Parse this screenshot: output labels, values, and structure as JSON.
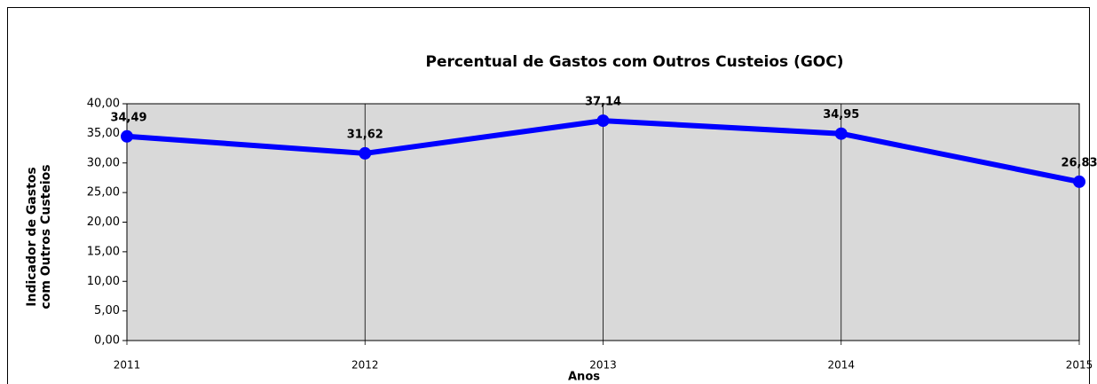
{
  "chart_data": {
    "type": "line",
    "title": "Percentual de Gastos com Outros Custeios (GOC)",
    "ylabel": [
      "Indicador de Gastos",
      "com Outros Custeios"
    ],
    "xlabel": "Anos",
    "categories": [
      "2011",
      "2012",
      "2013",
      "2014",
      "2015"
    ],
    "values": [
      34.49,
      31.62,
      37.14,
      34.95,
      26.83
    ],
    "value_labels": [
      "34,49",
      "31,62",
      "37,14",
      "34,95",
      "26,83"
    ],
    "color": "#0000ff",
    "ylim": [
      0,
      40
    ],
    "yticks": [
      {
        "value": 0,
        "label": "0,00"
      },
      {
        "value": 5,
        "label": "5,00"
      },
      {
        "value": 10,
        "label": "10,00"
      },
      {
        "value": 15,
        "label": "15,00"
      },
      {
        "value": 20,
        "label": "20,00"
      },
      {
        "value": 25,
        "label": "25,00"
      },
      {
        "value": 30,
        "label": "30,00"
      },
      {
        "value": 35,
        "label": "35,00"
      },
      {
        "value": 40,
        "label": "40,00"
      }
    ],
    "grid": true
  }
}
